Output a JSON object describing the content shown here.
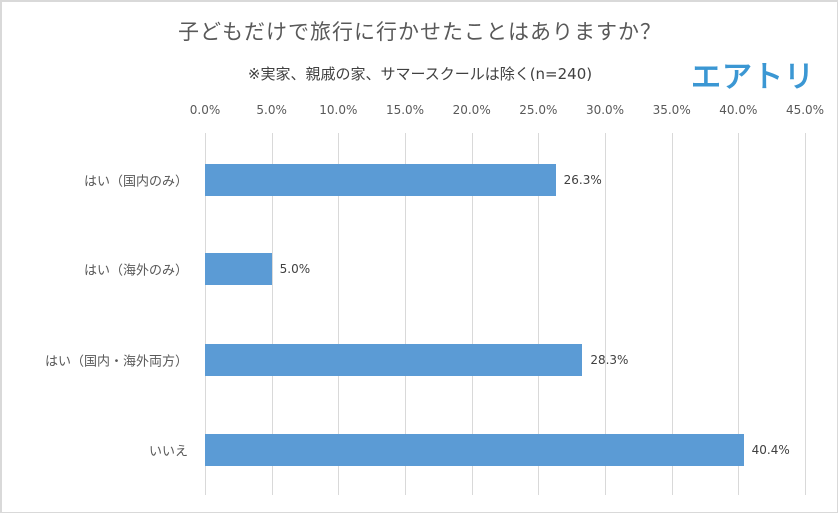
{
  "header": {
    "title": "子どもだけで旅行に行かせたことはありますか？",
    "subtitle": "※実家、親戚の家、サマースクールは除く(n=240)",
    "logo": "エアトリ"
  },
  "axis": {
    "ticks": [
      "0.0%",
      "5.0%",
      "10.0%",
      "15.0%",
      "20.0%",
      "25.0%",
      "30.0%",
      "35.0%",
      "40.0%",
      "45.0%"
    ]
  },
  "bars": [
    {
      "label": "はい（国内のみ）",
      "value": 26.3,
      "value_label": "26.3%"
    },
    {
      "label": "はい（海外のみ）",
      "value": 5.0,
      "value_label": "5.0%"
    },
    {
      "label": "はい（国内・海外両方）",
      "value": 28.3,
      "value_label": "28.3%"
    },
    {
      "label": "いいえ",
      "value": 40.4,
      "value_label": "40.4%"
    }
  ],
  "colors": {
    "bar": "#5b9bd5",
    "logo": "#3b97d3",
    "grid": "#d9d9d9"
  },
  "chart_data": {
    "type": "bar",
    "orientation": "horizontal",
    "title": "子どもだけで旅行に行かせたことはありますか？",
    "subtitle": "※実家、親戚の家、サマースクールは除く(n=240)",
    "categories": [
      "はい（国内のみ）",
      "はい（海外のみ）",
      "はい（国内・海外両方）",
      "いいえ"
    ],
    "values": [
      26.3,
      5.0,
      28.3,
      40.4
    ],
    "data_labels": [
      "26.3%",
      "5.0%",
      "28.3%",
      "40.4%"
    ],
    "xlabel": "",
    "ylabel": "",
    "xlim": [
      0,
      45
    ],
    "x_ticks": [
      "0.0%",
      "5.0%",
      "10.0%",
      "15.0%",
      "20.0%",
      "25.0%",
      "30.0%",
      "35.0%",
      "40.0%",
      "45.0%"
    ],
    "x_axis_position": "top",
    "grid": true,
    "legend": "none"
  }
}
